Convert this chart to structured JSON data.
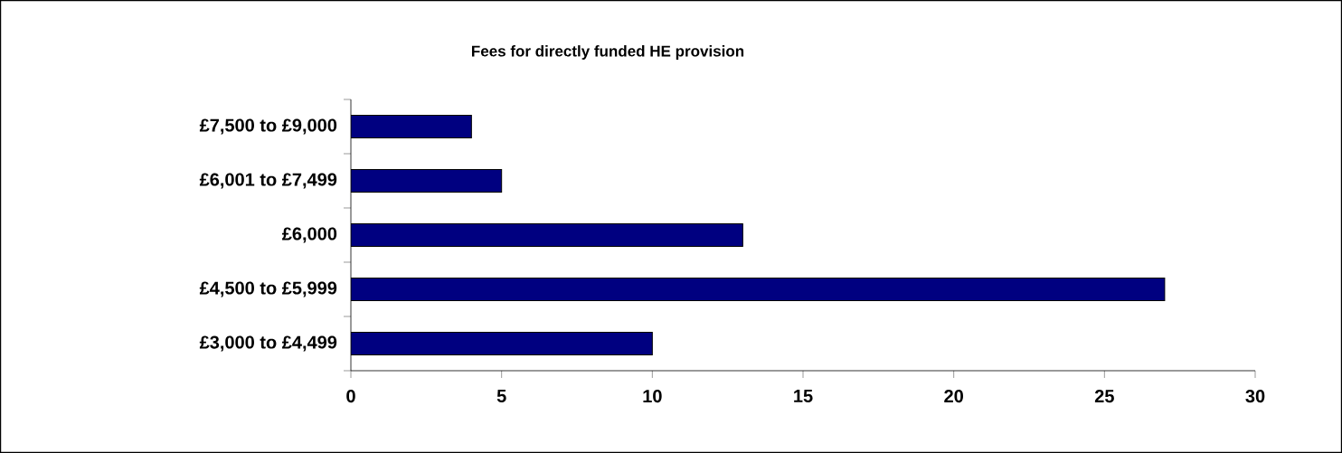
{
  "chart_data": {
    "type": "bar",
    "orientation": "horizontal",
    "title": "Fees for directly funded HE provision",
    "categories": [
      "£7,500 to £9,000",
      "£6,001 to £7,499",
      "£6,000",
      "£4,500 to £5,999",
      "£3,000 to £4,499"
    ],
    "values": [
      4,
      5,
      13,
      27,
      10
    ],
    "color": "#000080",
    "xlim": [
      0,
      30
    ],
    "xticks": [
      0,
      5,
      10,
      15,
      20,
      25,
      30
    ],
    "grid": false
  }
}
